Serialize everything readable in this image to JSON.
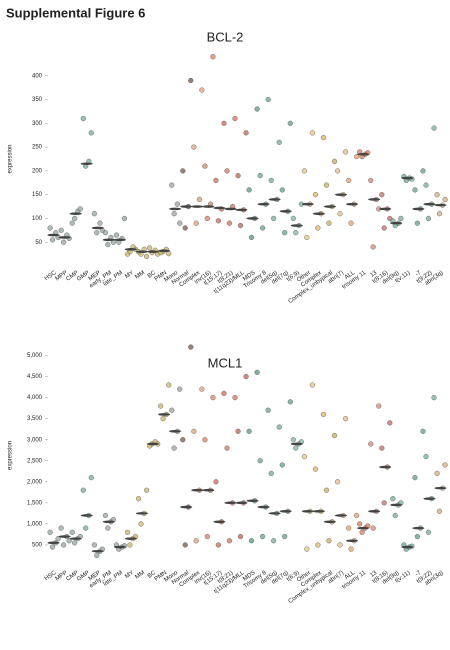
{
  "title": "Supplemental Figure 6",
  "chart_data": [
    {
      "type": "strip",
      "title": "BCL-2",
      "y_label": "expression",
      "categories": [
        "HSC",
        "MPP",
        "CMP",
        "GMP",
        "MEP",
        "early_PM",
        "late_PM",
        "MY",
        "MM",
        "BC",
        "PMN",
        "Mono",
        "Normal",
        "Complex",
        "inv(16)",
        "t(15;17)",
        "t(8;21)",
        "t(11q23)/MLL",
        "MDS",
        "Trisomy 8",
        "del(5q)",
        "del(7q)",
        "t(6;9)",
        "Other",
        "Complex",
        "Complex_unbypical",
        "abn(7)",
        "ALL",
        "trisomy 11",
        "13",
        "t(8;16)",
        "del(9q)",
        "t(v;11)",
        "-7",
        "t(9;22)",
        "abn(3q)"
      ],
      "colors": [
        "#8fa09a",
        "#8fa09a",
        "#8fa09a",
        "#6aa898",
        "#8fa09a",
        "#8fa09a",
        "#8fa09a",
        "#c8b060",
        "#c8b060",
        "#c8b060",
        "#c8b060",
        "#9a9a9a",
        "#6b4a3a",
        "#e09a70",
        "#d97860",
        "#c8604f",
        "#d06a5a",
        "#b8584a",
        "#4f8f78",
        "#5aa08a",
        "#6aaa90",
        "#5a9a8a",
        "#7ab0a0",
        "#e8c070",
        "#d8b060",
        "#c8a850",
        "#e0b880",
        "#e89a60",
        "#d07050",
        "#d08070",
        "#c06060",
        "#70a890",
        "#60a090",
        "#5a9888",
        "#6aa898",
        "#d0a878"
      ],
      "medians": [
        65,
        60,
        110,
        215,
        80,
        55,
        55,
        35,
        30,
        30,
        32,
        120,
        125,
        125,
        125,
        122,
        120,
        118,
        100,
        130,
        140,
        115,
        85,
        130,
        110,
        125,
        150,
        130,
        235,
        140,
        120,
        90,
        185,
        120,
        130,
        128
      ],
      "points": [
        [
          55,
          70,
          80,
          60
        ],
        [
          50,
          65,
          75,
          58
        ],
        [
          100,
          115,
          90,
          120
        ],
        [
          210,
          220,
          310,
          280
        ],
        [
          70,
          90,
          110,
          75
        ],
        [
          45,
          60,
          70,
          50
        ],
        [
          50,
          58,
          65,
          100
        ],
        [
          30,
          40,
          25,
          35
        ],
        [
          25,
          35,
          30,
          20
        ],
        [
          28,
          33,
          38,
          25
        ],
        [
          30,
          35,
          28,
          26
        ],
        [
          110,
          130,
          170,
          90
        ],
        [
          80,
          125,
          200,
          390
        ],
        [
          90,
          140,
          250,
          370
        ],
        [
          100,
          130,
          210,
          440
        ],
        [
          95,
          120,
          180,
          300
        ],
        [
          90,
          125,
          200,
          310
        ],
        [
          85,
          118,
          190,
          280
        ],
        [
          60,
          100,
          160,
          330
        ],
        [
          80,
          130,
          190,
          350
        ],
        [
          100,
          140,
          180,
          260
        ],
        [
          70,
          115,
          160,
          300
        ],
        [
          70,
          85,
          100,
          130
        ],
        [
          60,
          130,
          200,
          280
        ],
        [
          80,
          110,
          150,
          270
        ],
        [
          90,
          125,
          170,
          220
        ],
        [
          110,
          150,
          200,
          240
        ],
        [
          90,
          130,
          180,
          230
        ],
        [
          230,
          235,
          240,
          238
        ],
        [
          40,
          140,
          180,
          120
        ],
        [
          80,
          120,
          150,
          100
        ],
        [
          85,
          90,
          95,
          100
        ],
        [
          180,
          185,
          188,
          183
        ],
        [
          90,
          120,
          160,
          200
        ],
        [
          100,
          130,
          170,
          290
        ],
        [
          110,
          128,
          150,
          140
        ]
      ],
      "ylim": [
        0,
        450
      ],
      "yticks": [
        50,
        100,
        150,
        200,
        250,
        300,
        350,
        400
      ]
    },
    {
      "type": "strip",
      "title": "MCL1",
      "y_label": "expression",
      "categories": [
        "HSC",
        "MPP",
        "CMP",
        "GMP",
        "MEP",
        "early_PM",
        "late_PM",
        "MY",
        "MM",
        "BC",
        "PMN",
        "Mono",
        "Normal",
        "Complex",
        "inv(16)",
        "t(15;17)",
        "t(8;21)",
        "t(11q23)/MLL",
        "MDS",
        "Trisomy 8",
        "del(5q)",
        "del(7q)",
        "t(6;9)",
        "Other",
        "Complex",
        "Complex_unbypical",
        "abn(7)",
        "ALL",
        "trisomy 11",
        "13",
        "t(8;16)",
        "del(9q)",
        "t(v;11)",
        "-7",
        "t(9;22)",
        "abn(3q)"
      ],
      "colors": [
        "#8fa09a",
        "#8fa09a",
        "#8fa09a",
        "#6aa898",
        "#8fa09a",
        "#8fa09a",
        "#8fa09a",
        "#c8b060",
        "#c8b060",
        "#c8b060",
        "#c8b060",
        "#9a9a9a",
        "#6b4a3a",
        "#e09a70",
        "#d97860",
        "#c8604f",
        "#d06a5a",
        "#b8584a",
        "#4f8f78",
        "#5aa08a",
        "#6aaa90",
        "#5a9a8a",
        "#7ab0a0",
        "#e8c070",
        "#d8b060",
        "#c8a850",
        "#e0b880",
        "#e89a60",
        "#d07050",
        "#d08070",
        "#c06060",
        "#70a890",
        "#60a090",
        "#5a9888",
        "#6aa898",
        "#d0a878"
      ],
      "medians": [
        550,
        700,
        650,
        1200,
        350,
        1050,
        450,
        650,
        1250,
        2900,
        3600,
        3200,
        1400,
        1800,
        1800,
        1050,
        1500,
        1500,
        1550,
        1400,
        1250,
        1300,
        2900,
        1300,
        1300,
        1050,
        1200,
        600,
        900,
        1300,
        2350,
        1450,
        450,
        900,
        1600,
        1850
      ],
      "points": [
        [
          450,
          550,
          800,
          650
        ],
        [
          500,
          700,
          900,
          600
        ],
        [
          550,
          650,
          800,
          700
        ],
        [
          900,
          1200,
          1800,
          2100
        ],
        [
          250,
          350,
          500,
          400
        ],
        [
          900,
          1050,
          1200,
          1100
        ],
        [
          400,
          450,
          500,
          480
        ],
        [
          500,
          650,
          800,
          700
        ],
        [
          1000,
          1250,
          1600,
          1800
        ],
        [
          2900,
          2950,
          2850,
          2900
        ],
        [
          3500,
          3600,
          3800,
          4300
        ],
        [
          2800,
          3200,
          3700,
          4200
        ],
        [
          500,
          1400,
          3000,
          5200
        ],
        [
          600,
          1800,
          3200,
          4200
        ],
        [
          700,
          1800,
          3000,
          4000
        ],
        [
          500,
          1050,
          2000,
          4100
        ],
        [
          600,
          1500,
          2800,
          4000
        ],
        [
          700,
          1500,
          3200,
          4500
        ],
        [
          600,
          1550,
          3200,
          4600
        ],
        [
          700,
          1400,
          2500,
          3700
        ],
        [
          600,
          1250,
          2200,
          3300
        ],
        [
          700,
          1300,
          2400,
          3900
        ],
        [
          2800,
          2900,
          3000,
          2950
        ],
        [
          400,
          1300,
          2600,
          4300
        ],
        [
          500,
          1300,
          2300,
          3600
        ],
        [
          600,
          1050,
          1800,
          3100
        ],
        [
          500,
          1200,
          2000,
          3500
        ],
        [
          400,
          600,
          900,
          1200
        ],
        [
          800,
          900,
          1000,
          950
        ],
        [
          900,
          1300,
          2900,
          3800
        ],
        [
          1500,
          2350,
          2800,
          3400
        ],
        [
          1200,
          1450,
          1600,
          1500
        ],
        [
          400,
          450,
          500,
          470
        ],
        [
          700,
          900,
          2100,
          3200
        ],
        [
          800,
          1600,
          2600,
          4000
        ],
        [
          1300,
          1850,
          2200,
          2400
        ]
      ],
      "ylim": [
        0,
        5250
      ],
      "yticks": [
        500,
        {
          "value": 1000,
          "label": "1,000"
        },
        {
          "value": 1500,
          "label": "1,500"
        },
        {
          "value": 2000,
          "label": "2,000"
        },
        {
          "value": 2500,
          "label": "2,500"
        },
        {
          "value": 3000,
          "label": "3,000"
        },
        {
          "value": 3500,
          "label": "3,500"
        },
        {
          "value": 4000,
          "label": "4,000"
        },
        {
          "value": 4500,
          "label": "4,500"
        },
        {
          "value": 5000,
          "label": "5,000"
        }
      ]
    }
  ]
}
